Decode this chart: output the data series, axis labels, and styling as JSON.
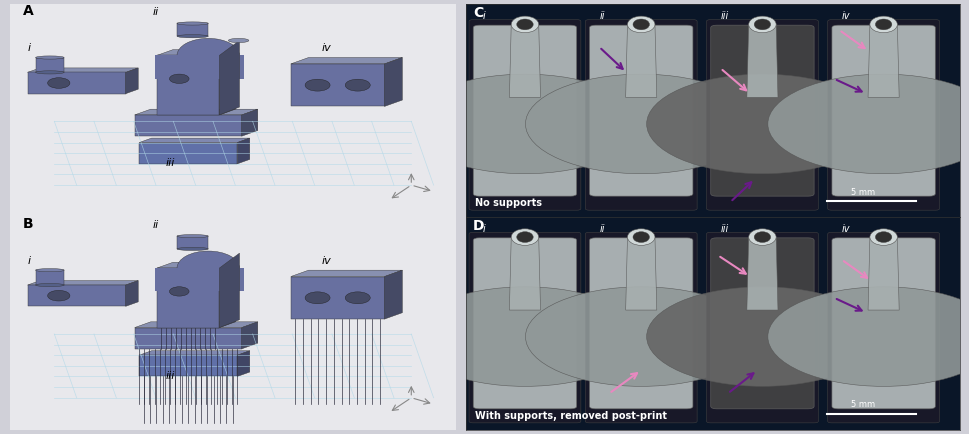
{
  "fig_width": 9.7,
  "fig_height": 4.34,
  "dpi": 100,
  "bg_color": "#d0d0d8",
  "dark_bg": "#0a1628",
  "panel_A_bg": "#e8e8ec",
  "panel_B_bg": "#e8e8ec",
  "grid_color": "#b0d8e8",
  "part_color": "#6870a0",
  "part_color_dark": "#454a65",
  "part_top_color": "#8890b0",
  "label_A": "A",
  "label_B": "B",
  "label_C": "C",
  "label_D": "D",
  "sub_labels_AB": [
    "i",
    "ii",
    "iii",
    "iv"
  ],
  "sub_labels_CD": [
    "i",
    "ii",
    "iii",
    "iv"
  ],
  "text_C": "No supports",
  "text_D": "With supports, removed post-print",
  "scale_bar": "5 mm",
  "arrow_purple": "#6a1a8a",
  "arrow_pink": "#e888c0",
  "font_size_label": 10,
  "font_size_sublabel": 8,
  "font_size_text": 7,
  "support_color": "#2a2a3a",
  "cyl_color": "#7880a8",
  "cyl_dark": "#556088"
}
